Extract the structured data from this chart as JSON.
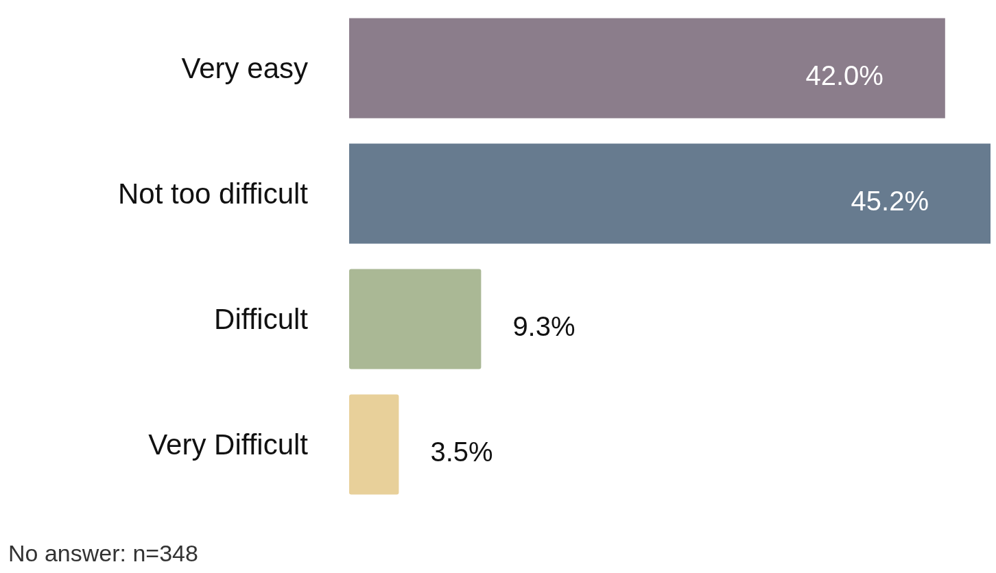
{
  "chart_data": {
    "type": "bar",
    "orientation": "horizontal",
    "categories": [
      "Very easy",
      "Not too difficult",
      "Difficult",
      "Very Difficult"
    ],
    "values": [
      42.0,
      45.2,
      9.3,
      3.5
    ],
    "value_labels": [
      "42.0%",
      "45.2%",
      "9.3%",
      "3.5%"
    ],
    "colors": [
      "#8b7d8b",
      "#677b8f",
      "#aab895",
      "#e8d09a"
    ],
    "annotations": [
      "No answer: n=348"
    ]
  }
}
